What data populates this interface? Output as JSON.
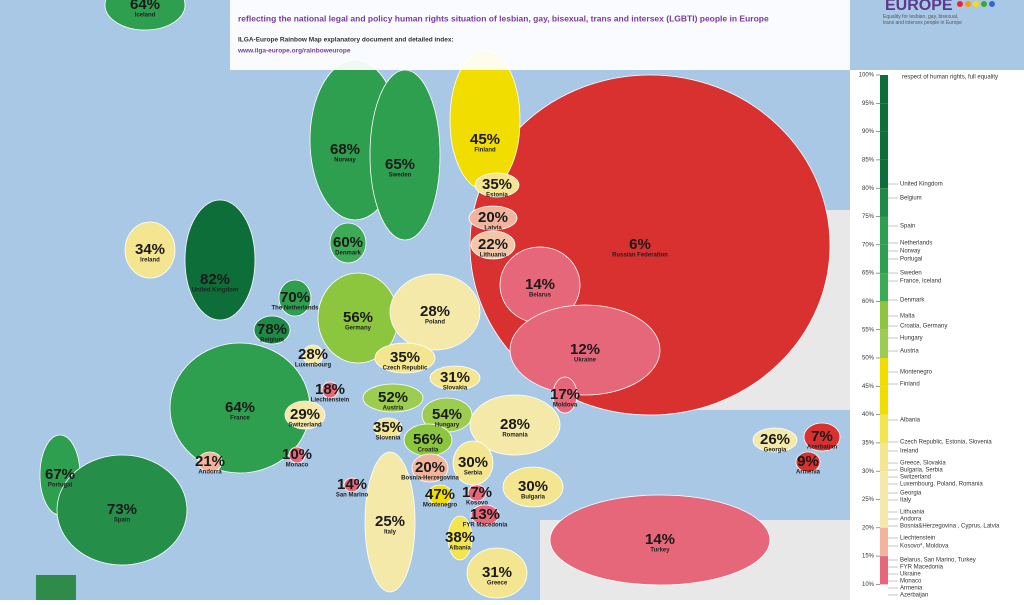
{
  "header": {
    "subtitle": "reflecting the national legal and policy human rights situation of lesbian, gay, bisexual, trans and intersex (LGBTI) people in Europe",
    "index_note": "ILGA-Europe Rainbow Map explanatory document and detailed index:",
    "url": "www.ilga-europe.org/rainboweurope",
    "logo": "EUROPE",
    "logo_tagline": "Equality for lesbian, gay, bisexual, trans and intersex people in Europe"
  },
  "countries": [
    {
      "name": "Russian Federation",
      "score": "6%",
      "color": "#d9312f"
    },
    {
      "name": "Turkey",
      "score": "14%",
      "color": "#e6677a"
    },
    {
      "name": "Iceland",
      "score": "64%",
      "color": "#2e9e4f"
    },
    {
      "name": "Norway",
      "score": "68%",
      "color": "#2e9e4f"
    },
    {
      "name": "Sweden",
      "score": "65%",
      "color": "#2e9e4f"
    },
    {
      "name": "Finland",
      "score": "45%",
      "color": "#f2dd00"
    },
    {
      "name": "Estonia",
      "score": "35%",
      "color": "#f4e690"
    },
    {
      "name": "Latvia",
      "score": "20%",
      "color": "#f2b49c"
    },
    {
      "name": "Lithuania",
      "score": "22%",
      "color": "#f2c7a8"
    },
    {
      "name": "Ireland",
      "score": "34%",
      "color": "#f4e690"
    },
    {
      "name": "United Kingdom",
      "score": "82%",
      "color": "#0e6e3a"
    },
    {
      "name": "Denmark",
      "score": "60%",
      "color": "#3daa55"
    },
    {
      "name": "The Netherlands",
      "score": "70%",
      "color": "#2e9e4f"
    },
    {
      "name": "Belgium",
      "score": "78%",
      "color": "#1e8a47"
    },
    {
      "name": "Luxembourg",
      "score": "28%",
      "color": "#f4e9a8"
    },
    {
      "name": "Germany",
      "score": "56%",
      "color": "#8cc63f"
    },
    {
      "name": "Poland",
      "score": "28%",
      "color": "#f4e9a8"
    },
    {
      "name": "Belarus",
      "score": "14%",
      "color": "#e6677a"
    },
    {
      "name": "Ukraine",
      "score": "12%",
      "color": "#e6677a"
    },
    {
      "name": "Czech Republic",
      "score": "35%",
      "color": "#f4e690"
    },
    {
      "name": "Slovakia",
      "score": "31%",
      "color": "#f4e690"
    },
    {
      "name": "Liechtenstein",
      "score": "18%",
      "color": "#e6677a"
    },
    {
      "name": "Austria",
      "score": "52%",
      "color": "#9ccc50"
    },
    {
      "name": "Hungary",
      "score": "54%",
      "color": "#9ccc50"
    },
    {
      "name": "Moldova",
      "score": "17%",
      "color": "#e6677a"
    },
    {
      "name": "Romania",
      "score": "28%",
      "color": "#f4e9a8"
    },
    {
      "name": "France",
      "score": "64%",
      "color": "#2e9e4f"
    },
    {
      "name": "Switzerland",
      "score": "29%",
      "color": "#f4e9a8"
    },
    {
      "name": "Slovenia",
      "score": "35%",
      "color": "#f4e690"
    },
    {
      "name": "Croatia",
      "score": "56%",
      "color": "#8cc63f"
    },
    {
      "name": "Monaco",
      "score": "10%",
      "color": "#e6677a"
    },
    {
      "name": "Andorra",
      "score": "21%",
      "color": "#f2b49c"
    },
    {
      "name": "Portugal",
      "score": "67%",
      "color": "#2e9e4f"
    },
    {
      "name": "Spain",
      "score": "73%",
      "color": "#258f4a"
    },
    {
      "name": "Bosnia-Herzegovina",
      "score": "20%",
      "color": "#f2b49c"
    },
    {
      "name": "Serbia",
      "score": "30%",
      "color": "#f4e690"
    },
    {
      "name": "Bulgaria",
      "score": "30%",
      "color": "#f4e690"
    },
    {
      "name": "Montenegro",
      "score": "47%",
      "color": "#f2dd00"
    },
    {
      "name": "Kosovo",
      "score": "17%",
      "color": "#e6677a"
    },
    {
      "name": "FYR Macedonia",
      "score": "13%",
      "color": "#e6677a"
    },
    {
      "name": "Albania",
      "score": "38%",
      "color": "#f2e550"
    },
    {
      "name": "Italy",
      "score": "25%",
      "color": "#f4e9a8"
    },
    {
      "name": "San Marino",
      "score": "14%",
      "color": "#e6677a"
    },
    {
      "name": "Greece",
      "score": "31%",
      "color": "#f4e690"
    },
    {
      "name": "Georgia",
      "score": "26%",
      "color": "#f4e9a8"
    },
    {
      "name": "Azerbaijan",
      "score": "7%",
      "color": "#d9312f"
    },
    {
      "name": "Armenia",
      "score": "9%",
      "color": "#d9312f"
    }
  ],
  "legend": {
    "top_note": "respect of human rights, full equality",
    "ticks": [
      "100%",
      "95%",
      "90%",
      "85%",
      "80%",
      "75%",
      "70%",
      "65%",
      "60%",
      "55%",
      "50%",
      "45%",
      "40%",
      "35%",
      "30%",
      "25%",
      "20%",
      "15%",
      "10%"
    ],
    "entries": [
      "United Kingdom",
      "Belgium",
      "Spain",
      "Netherlands",
      "Norway",
      "Portugal",
      "Sweden",
      "France, Iceland",
      "Denmark",
      "Malta",
      "Croatia, Germany",
      "Hungary",
      "Austria",
      "Montenegro",
      "Finland",
      "Albania",
      "Czech Republic, Estonia, Slovenia",
      "Ireland",
      "Greece, Slovakia",
      "Bulgaria, Serbia",
      "Switzerland",
      "Luxembourg, Poland, Romania",
      "Georgia",
      "Italy",
      "Lithuania",
      "Andorra",
      "Bosnia&Herzegovina , Cyprus, Latvia",
      "Liechtenstein",
      "Kosovo*, Moldova",
      "Belarus, San Marino, Turkey",
      "FYR Macedonia",
      "Ukraine",
      "Monaco",
      "Armenia",
      "Azerbaijan"
    ]
  }
}
